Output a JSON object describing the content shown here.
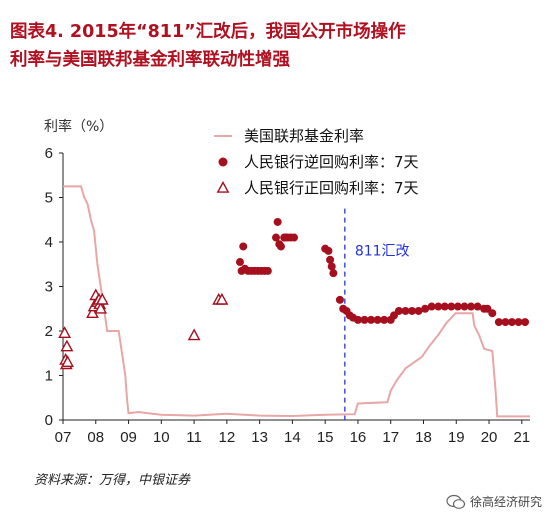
{
  "figure": {
    "title_line1": "图表4. 2015年“811”汇改后，我国公开市场操作",
    "title_line2": "利率与美国联邦基金利率联动性增强",
    "source": "资料来源：万得，中银证券",
    "watermark": "徐高经济研究"
  },
  "chart_data": {
    "type": "line",
    "ylabel": "利率（%）",
    "xlabel": "",
    "ylim": [
      0,
      6
    ],
    "xlim": [
      2007,
      2021.25
    ],
    "y_ticks": [
      "0",
      "1",
      "2",
      "3",
      "4",
      "5",
      "6"
    ],
    "x_ticks": [
      "07",
      "08",
      "09",
      "10",
      "11",
      "12",
      "13",
      "14",
      "15",
      "16",
      "17",
      "18",
      "19",
      "20",
      "21"
    ],
    "annotation": {
      "label": "811汇改",
      "x": 2015.6
    },
    "legend_position": "top-right",
    "colors": {
      "fed": "#e8a6a6",
      "reverse_repo": "#a50f1e",
      "repo": "#a50f1e",
      "marker_line": "#2233dd",
      "title": "#b01020"
    },
    "series": [
      {
        "name": "美国联邦基金利率",
        "kind": "line",
        "points": [
          [
            2007.0,
            5.25
          ],
          [
            2007.55,
            5.25
          ],
          [
            2007.65,
            5.0
          ],
          [
            2007.75,
            4.85
          ],
          [
            2007.85,
            4.5
          ],
          [
            2007.95,
            4.25
          ],
          [
            2008.05,
            3.5
          ],
          [
            2008.15,
            3.0
          ],
          [
            2008.25,
            2.5
          ],
          [
            2008.35,
            2.0
          ],
          [
            2008.5,
            2.0
          ],
          [
            2008.7,
            2.0
          ],
          [
            2008.8,
            1.5
          ],
          [
            2008.9,
            1.0
          ],
          [
            2008.95,
            0.5
          ],
          [
            2009.0,
            0.15
          ],
          [
            2009.3,
            0.18
          ],
          [
            2009.6,
            0.15
          ],
          [
            2010.0,
            0.12
          ],
          [
            2011.0,
            0.1
          ],
          [
            2012.0,
            0.14
          ],
          [
            2013.0,
            0.1
          ],
          [
            2014.0,
            0.09
          ],
          [
            2015.0,
            0.12
          ],
          [
            2015.9,
            0.13
          ],
          [
            2016.0,
            0.37
          ],
          [
            2016.9,
            0.4
          ],
          [
            2017.0,
            0.66
          ],
          [
            2017.2,
            0.91
          ],
          [
            2017.45,
            1.16
          ],
          [
            2017.95,
            1.42
          ],
          [
            2018.2,
            1.68
          ],
          [
            2018.45,
            1.91
          ],
          [
            2018.7,
            2.18
          ],
          [
            2018.98,
            2.4
          ],
          [
            2019.5,
            2.4
          ],
          [
            2019.55,
            2.12
          ],
          [
            2019.7,
            1.9
          ],
          [
            2019.85,
            1.6
          ],
          [
            2020.1,
            1.55
          ],
          [
            2020.2,
            0.65
          ],
          [
            2020.25,
            0.08
          ],
          [
            2021.25,
            0.08
          ]
        ]
      },
      {
        "name": "人民银行逆回购利率：7天",
        "kind": "dots",
        "points": [
          [
            2012.4,
            3.55
          ],
          [
            2012.45,
            3.35
          ],
          [
            2012.5,
            3.9
          ],
          [
            2012.55,
            3.4
          ],
          [
            2012.65,
            3.35
          ],
          [
            2012.75,
            3.35
          ],
          [
            2012.85,
            3.35
          ],
          [
            2012.95,
            3.35
          ],
          [
            2013.05,
            3.35
          ],
          [
            2013.15,
            3.35
          ],
          [
            2013.25,
            3.35
          ],
          [
            2013.5,
            4.1
          ],
          [
            2013.55,
            4.45
          ],
          [
            2013.6,
            3.95
          ],
          [
            2013.65,
            3.9
          ],
          [
            2013.75,
            4.1
          ],
          [
            2013.8,
            4.1
          ],
          [
            2013.85,
            4.1
          ],
          [
            2013.95,
            4.1
          ],
          [
            2014.05,
            4.1
          ],
          [
            2015.0,
            3.85
          ],
          [
            2015.1,
            3.8
          ],
          [
            2015.15,
            3.6
          ],
          [
            2015.2,
            3.45
          ],
          [
            2015.25,
            3.3
          ],
          [
            2015.45,
            2.7
          ],
          [
            2015.55,
            2.5
          ],
          [
            2015.65,
            2.45
          ],
          [
            2015.75,
            2.35
          ],
          [
            2015.85,
            2.3
          ],
          [
            2016.0,
            2.25
          ],
          [
            2016.2,
            2.25
          ],
          [
            2016.4,
            2.25
          ],
          [
            2016.6,
            2.25
          ],
          [
            2016.8,
            2.25
          ],
          [
            2017.0,
            2.25
          ],
          [
            2017.1,
            2.35
          ],
          [
            2017.25,
            2.45
          ],
          [
            2017.45,
            2.45
          ],
          [
            2017.65,
            2.45
          ],
          [
            2017.85,
            2.45
          ],
          [
            2018.05,
            2.5
          ],
          [
            2018.25,
            2.55
          ],
          [
            2018.45,
            2.55
          ],
          [
            2018.65,
            2.55
          ],
          [
            2018.85,
            2.55
          ],
          [
            2019.05,
            2.55
          ],
          [
            2019.25,
            2.55
          ],
          [
            2019.45,
            2.55
          ],
          [
            2019.65,
            2.55
          ],
          [
            2019.85,
            2.5
          ],
          [
            2019.95,
            2.5
          ],
          [
            2020.1,
            2.4
          ],
          [
            2020.3,
            2.2
          ],
          [
            2020.5,
            2.2
          ],
          [
            2020.7,
            2.2
          ],
          [
            2020.9,
            2.2
          ],
          [
            2021.1,
            2.2
          ]
        ]
      },
      {
        "name": "人民银行正回购利率：7天",
        "kind": "triangles",
        "points": [
          [
            2007.05,
            1.95
          ],
          [
            2007.08,
            1.35
          ],
          [
            2007.1,
            1.25
          ],
          [
            2007.12,
            1.65
          ],
          [
            2007.14,
            1.3
          ],
          [
            2007.9,
            2.4
          ],
          [
            2007.95,
            2.55
          ],
          [
            2008.0,
            2.8
          ],
          [
            2008.05,
            2.65
          ],
          [
            2008.1,
            2.7
          ],
          [
            2008.12,
            2.6
          ],
          [
            2008.15,
            2.5
          ],
          [
            2008.2,
            2.7
          ],
          [
            2011.0,
            1.9
          ],
          [
            2011.75,
            2.7
          ],
          [
            2011.85,
            2.7
          ]
        ]
      }
    ]
  }
}
